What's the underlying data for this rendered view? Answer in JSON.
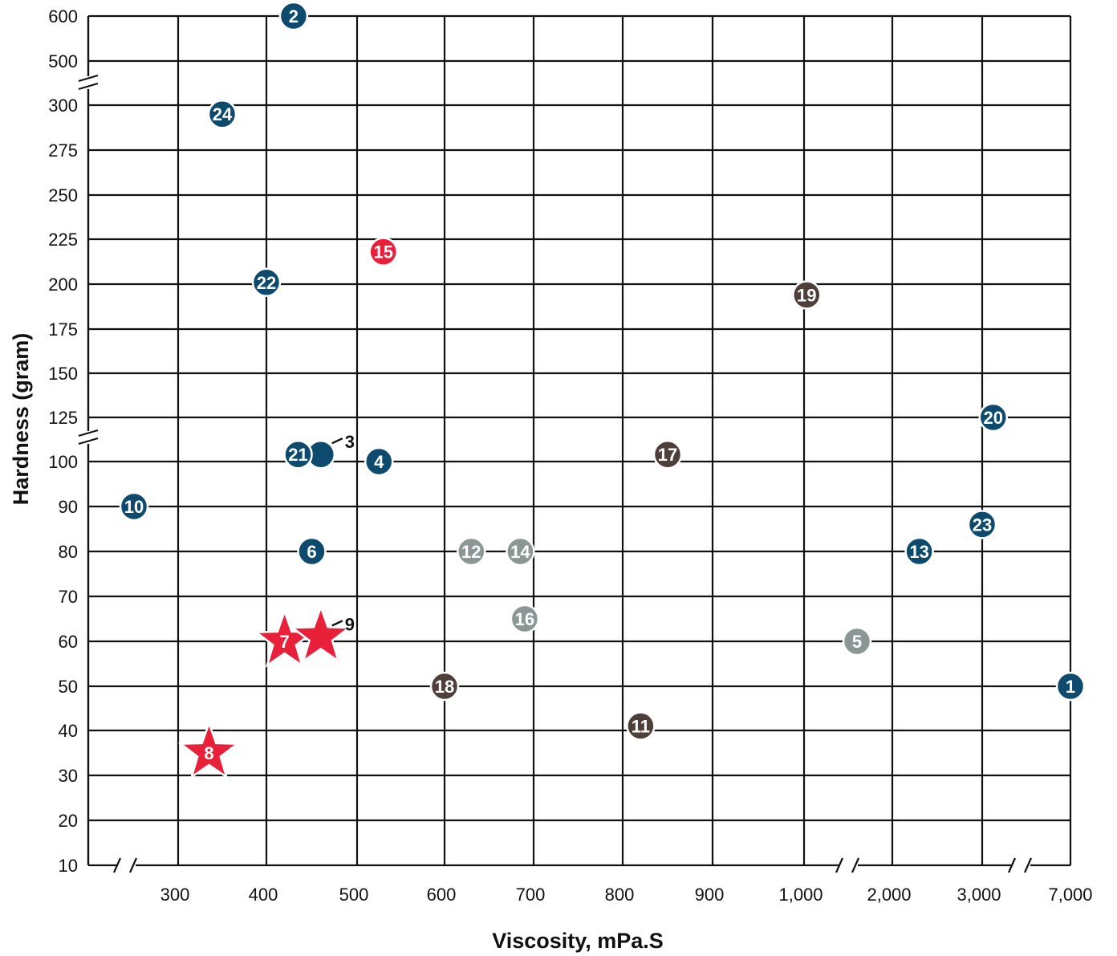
{
  "chart_data": {
    "type": "scatter",
    "xlabel": "Viscosity, mPa.S",
    "ylabel": "Hardness (gram)",
    "x_ticks": [
      "300",
      "400",
      "500",
      "600",
      "700",
      "800",
      "900",
      "1,000",
      "2,000",
      "3,000",
      "7,000"
    ],
    "x_axis_breaks": [
      "below 300",
      "between 1,000 and 2,000",
      "between 3,000 and 7,000"
    ],
    "y_ticks": [
      "10",
      "20",
      "30",
      "40",
      "50",
      "60",
      "70",
      "80",
      "90",
      "100",
      "125",
      "150",
      "175",
      "200",
      "225",
      "250",
      "275",
      "300",
      "500",
      "600"
    ],
    "y_axis_breaks": [
      "between 100 and 125",
      "between 300 and 500"
    ],
    "grid": true,
    "colors": {
      "blue": "#0d4a6e",
      "red": "#e8203a",
      "gray": "#8a9795",
      "brown": "#4f3f3a"
    },
    "points": [
      {
        "id": "1",
        "x": 7000,
        "y": 50,
        "color": "blue",
        "marker": "circle"
      },
      {
        "id": "2",
        "x": 430,
        "y": 600,
        "color": "blue",
        "marker": "circle"
      },
      {
        "id": "3",
        "x": 460,
        "y": 104,
        "color": "blue",
        "marker": "circle",
        "callout": true
      },
      {
        "id": "4",
        "x": 525,
        "y": 100,
        "color": "blue",
        "marker": "circle"
      },
      {
        "id": "5",
        "x": 1600,
        "y": 60,
        "color": "gray",
        "marker": "circle"
      },
      {
        "id": "6",
        "x": 450,
        "y": 80,
        "color": "blue",
        "marker": "circle"
      },
      {
        "id": "7",
        "x": 420,
        "y": 60,
        "color": "red",
        "marker": "star"
      },
      {
        "id": "8",
        "x": 335,
        "y": 35,
        "color": "red",
        "marker": "star"
      },
      {
        "id": "9",
        "x": 460,
        "y": 61,
        "color": "red",
        "marker": "star",
        "callout": true
      },
      {
        "id": "10",
        "x": 250,
        "y": 90,
        "color": "blue",
        "marker": "circle"
      },
      {
        "id": "11",
        "x": 820,
        "y": 41,
        "color": "brown",
        "marker": "circle"
      },
      {
        "id": "12",
        "x": 630,
        "y": 80,
        "color": "gray",
        "marker": "circle"
      },
      {
        "id": "13",
        "x": 2300,
        "y": 80,
        "color": "blue",
        "marker": "circle"
      },
      {
        "id": "14",
        "x": 685,
        "y": 80,
        "color": "gray",
        "marker": "circle"
      },
      {
        "id": "15",
        "x": 530,
        "y": 218,
        "color": "red",
        "marker": "circle"
      },
      {
        "id": "16",
        "x": 690,
        "y": 65,
        "color": "gray",
        "marker": "circle"
      },
      {
        "id": "17",
        "x": 850,
        "y": 104,
        "color": "brown",
        "marker": "circle"
      },
      {
        "id": "18",
        "x": 600,
        "y": 50,
        "color": "brown",
        "marker": "circle"
      },
      {
        "id": "19",
        "x": 1030,
        "y": 194,
        "color": "brown",
        "marker": "circle"
      },
      {
        "id": "20",
        "x": 3500,
        "y": 125,
        "color": "blue",
        "marker": "circle"
      },
      {
        "id": "21",
        "x": 435,
        "y": 104,
        "color": "blue",
        "marker": "circle"
      },
      {
        "id": "22",
        "x": 400,
        "y": 201,
        "color": "blue",
        "marker": "circle"
      },
      {
        "id": "23",
        "x": 3000,
        "y": 86,
        "color": "blue",
        "marker": "circle"
      },
      {
        "id": "24",
        "x": 350,
        "y": 295,
        "color": "blue",
        "marker": "circle"
      }
    ]
  }
}
